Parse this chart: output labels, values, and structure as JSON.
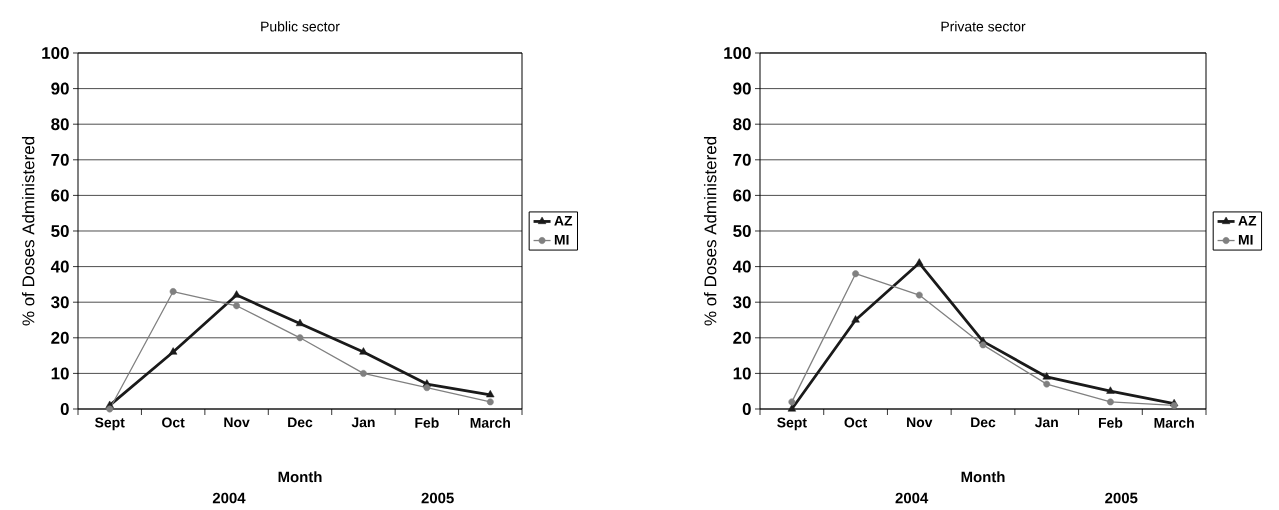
{
  "chart_data": [
    {
      "type": "line",
      "title": "Public sector",
      "xlabel": "Month",
      "ylabel": "% of Doses Administered",
      "categories": [
        "Sept",
        "Oct",
        "Nov",
        "Dec",
        "Jan",
        "Feb",
        "March"
      ],
      "series": [
        {
          "name": "AZ",
          "color": "#1a1a1a",
          "marker": "triangle",
          "values": [
            1,
            16,
            32,
            24,
            16,
            7,
            4
          ]
        },
        {
          "name": "MI",
          "color": "#808080",
          "marker": "circle",
          "values": [
            0,
            33,
            29,
            20,
            10,
            6,
            2
          ]
        }
      ],
      "ylim": [
        0,
        100
      ],
      "yticks": [
        0,
        10,
        20,
        30,
        40,
        50,
        60,
        70,
        80,
        90,
        100
      ],
      "grid": "y",
      "legend": "right",
      "line_style": "solid",
      "annotations": [
        "2004",
        "2005"
      ]
    },
    {
      "type": "line",
      "title": "Private sector",
      "xlabel": "Month",
      "ylabel": "% of Doses Administered",
      "categories": [
        "Sept",
        "Oct",
        "Nov",
        "Dec",
        "Jan",
        "Feb",
        "March"
      ],
      "series": [
        {
          "name": "AZ",
          "color": "#1a1a1a",
          "marker": "triangle",
          "values": [
            0,
            25,
            41,
            19,
            9,
            5,
            1.5
          ]
        },
        {
          "name": "MI",
          "color": "#808080",
          "marker": "circle",
          "values": [
            2,
            38,
            32,
            18,
            7,
            2,
            1
          ]
        }
      ],
      "ylim": [
        0,
        100
      ],
      "yticks": [
        0,
        10,
        20,
        30,
        40,
        50,
        60,
        70,
        80,
        90,
        100
      ],
      "grid": "y",
      "legend": "right",
      "line_style": "solid",
      "annotations": [
        "2004",
        "2005"
      ]
    }
  ]
}
